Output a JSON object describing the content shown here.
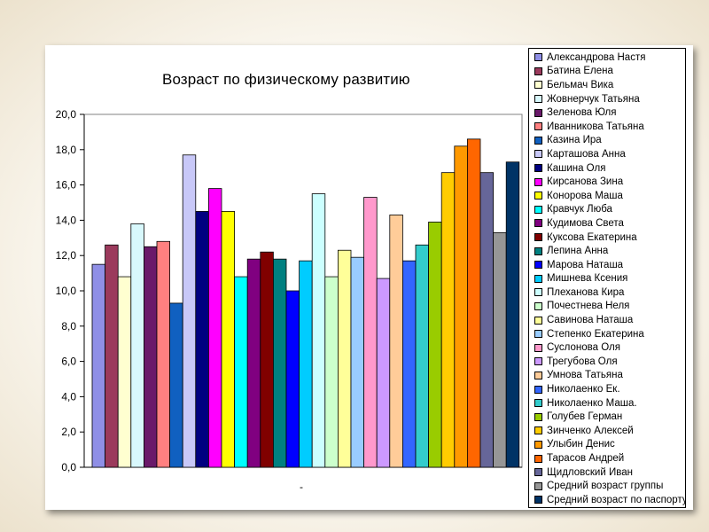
{
  "chart_data": {
    "type": "bar",
    "title": "Возраст по физическому развитию",
    "xlabel": "-",
    "ylabel": "",
    "ylim": [
      0,
      20
    ],
    "ytick_step": 2,
    "ytick_labels": [
      "0,0",
      "2,0",
      "4,0",
      "6,0",
      "8,0",
      "10,0",
      "12,0",
      "14,0",
      "16,0",
      "18,0",
      "20,0"
    ],
    "grid": false,
    "legend_position": "right",
    "series": [
      {
        "name": "Александрова Настя",
        "value": 11.5,
        "color": "#8f8fe6"
      },
      {
        "name": "Батина Елена",
        "value": 12.6,
        "color": "#9b3a5c"
      },
      {
        "name": "Бельмач Вика",
        "value": 10.8,
        "color": "#ffffd0"
      },
      {
        "name": "Жовнерчук Татьяна",
        "value": 13.8,
        "color": "#d8f8fc"
      },
      {
        "name": "Зеленова Юля",
        "value": 12.5,
        "color": "#6a1a6a"
      },
      {
        "name": "Иванникова Татьяна",
        "value": 12.8,
        "color": "#ff8080"
      },
      {
        "name": "Казина Ира",
        "value": 9.3,
        "color": "#1060c0"
      },
      {
        "name": "Карташова Анна",
        "value": 17.7,
        "color": "#c8c8f8"
      },
      {
        "name": "Кашина Оля",
        "value": 14.5,
        "color": "#000080"
      },
      {
        "name": "Кирсанова Зина",
        "value": 15.8,
        "color": "#ff00ff"
      },
      {
        "name": "Конорова Маша",
        "value": 14.5,
        "color": "#ffff00"
      },
      {
        "name": "Кравчук Люба",
        "value": 10.8,
        "color": "#00ffff"
      },
      {
        "name": "Кудимова Света",
        "value": 11.8,
        "color": "#800080"
      },
      {
        "name": "Куксова Екатерина",
        "value": 12.2,
        "color": "#800000"
      },
      {
        "name": "Лепина Анна",
        "value": 11.8,
        "color": "#008080"
      },
      {
        "name": "Марова Наташа",
        "value": 10.0,
        "color": "#0000ff"
      },
      {
        "name": "Мишнева Ксения",
        "value": 11.7,
        "color": "#00ccff"
      },
      {
        "name": "Плеханова Кира",
        "value": 15.5,
        "color": "#ccffff"
      },
      {
        "name": "Почестнева Неля",
        "value": 10.8,
        "color": "#ccffcc"
      },
      {
        "name": "Савинова Наташа",
        "value": 12.3,
        "color": "#ffff99"
      },
      {
        "name": "Степенко Екатерина",
        "value": 11.9,
        "color": "#99ccff"
      },
      {
        "name": "Суслонова Оля",
        "value": 15.3,
        "color": "#ff99cc"
      },
      {
        "name": "Трегубова Оля",
        "value": 10.7,
        "color": "#cc99ff"
      },
      {
        "name": "Умнова Татьяна",
        "value": 14.3,
        "color": "#ffcc99"
      },
      {
        "name": "Николаенко Ек.",
        "value": 11.7,
        "color": "#3366ff"
      },
      {
        "name": "Николаенко Маша.",
        "value": 12.6,
        "color": "#33cccc"
      },
      {
        "name": "Голубев Герман",
        "value": 13.9,
        "color": "#99cc00"
      },
      {
        "name": "Зинченко Алексей",
        "value": 16.7,
        "color": "#ffcc00"
      },
      {
        "name": "Улыбин Денис",
        "value": 18.2,
        "color": "#ff9900"
      },
      {
        "name": "Тарасов Андрей",
        "value": 18.6,
        "color": "#ff6600"
      },
      {
        "name": "Щидловский Иван",
        "value": 16.7,
        "color": "#666699"
      },
      {
        "name": "Средний возраст группы",
        "value": 13.3,
        "color": "#969696"
      },
      {
        "name": "Средний возраст по паспорту",
        "value": 17.3,
        "color": "#003366"
      }
    ]
  }
}
